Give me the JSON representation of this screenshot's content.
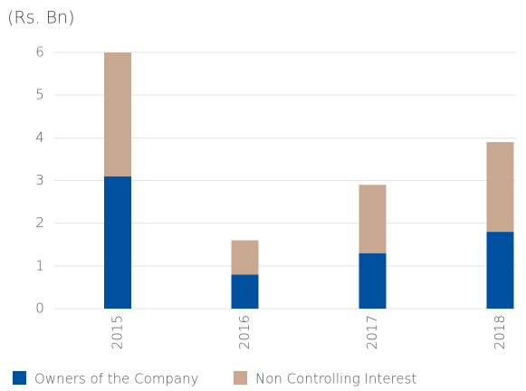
{
  "chart_data": {
    "type": "stacked_bar",
    "y_axis_label": "(Rs. Bn)",
    "categories": [
      "2015",
      "2016",
      "2017",
      "2018"
    ],
    "series": [
      {
        "name": "Owners of the Company",
        "color": "#0050a0",
        "values": [
          3.1,
          0.8,
          1.3,
          1.8
        ]
      },
      {
        "name": "Non Controlling Interest",
        "color": "#c9a892",
        "values": [
          2.9,
          0.8,
          1.6,
          2.1
        ]
      }
    ],
    "ylim": [
      0,
      6
    ],
    "yticks": [
      0,
      1,
      2,
      3,
      4,
      5,
      6
    ],
    "grid": true,
    "legend": "bottom"
  }
}
